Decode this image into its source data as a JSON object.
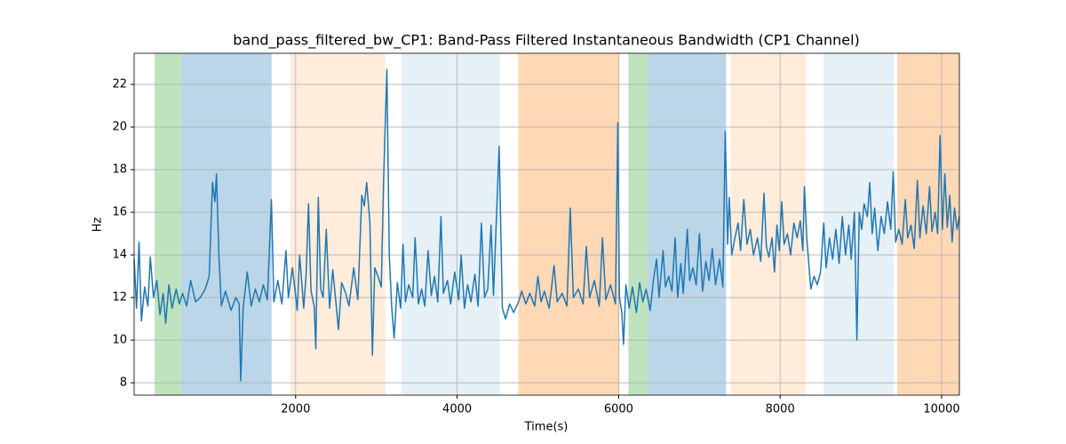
{
  "chart_data": {
    "type": "line",
    "title": "band_pass_filtered_bw_CP1: Band-Pass Filtered Instantaneous Bandwidth (CP1 Channel)",
    "xlabel": "Time(s)",
    "ylabel": "Hz",
    "xlim": [
      0,
      10220
    ],
    "ylim": [
      7.42,
      23.46
    ],
    "xticks": [
      2000,
      4000,
      6000,
      8000,
      10000
    ],
    "yticks": [
      8,
      10,
      12,
      14,
      16,
      18,
      20,
      22
    ],
    "grid": true,
    "spans": [
      {
        "x0": 253,
        "x1": 582,
        "color": "#2ca02c",
        "alpha": 0.3
      },
      {
        "x0": 582,
        "x1": 1703,
        "color": "#1f77b4",
        "alpha": 0.3
      },
      {
        "x0": 1934,
        "x1": 3110,
        "color": "#ff7f0e",
        "alpha": 0.15
      },
      {
        "x0": 3308,
        "x1": 4527,
        "color": "#1f77b4",
        "alpha": 0.11
      },
      {
        "x0": 4758,
        "x1": 6011,
        "color": "#ff7f0e",
        "alpha": 0.3
      },
      {
        "x0": 6121,
        "x1": 6363,
        "color": "#2ca02c",
        "alpha": 0.3
      },
      {
        "x0": 6363,
        "x1": 7330,
        "color": "#1f77b4",
        "alpha": 0.3
      },
      {
        "x0": 7385,
        "x1": 8319,
        "color": "#ff7f0e",
        "alpha": 0.15
      },
      {
        "x0": 8538,
        "x1": 9407,
        "color": "#1f77b4",
        "alpha": 0.11
      },
      {
        "x0": 9451,
        "x1": 10220,
        "color": "#ff7f0e",
        "alpha": 0.3
      }
    ],
    "x": [
      0,
      30,
      60,
      90,
      130,
      170,
      200,
      240,
      280,
      320,
      360,
      390,
      430,
      470,
      520,
      560,
      600,
      650,
      700,
      760,
      820,
      880,
      930,
      970,
      1000,
      1020,
      1050,
      1080,
      1130,
      1200,
      1260,
      1300,
      1320,
      1350,
      1400,
      1450,
      1500,
      1550,
      1600,
      1650,
      1700,
      1730,
      1780,
      1830,
      1880,
      1910,
      1960,
      2020,
      2050,
      2100,
      2130,
      2160,
      2190,
      2230,
      2250,
      2280,
      2310,
      2340,
      2380,
      2420,
      2460,
      2500,
      2530,
      2570,
      2620,
      2660,
      2720,
      2770,
      2820,
      2850,
      2880,
      2920,
      2950,
      2980,
      3020,
      3060,
      3090,
      3130,
      3160,
      3190,
      3220,
      3260,
      3300,
      3330,
      3360,
      3400,
      3450,
      3480,
      3520,
      3560,
      3600,
      3640,
      3680,
      3720,
      3760,
      3800,
      3830,
      3880,
      3920,
      3970,
      4020,
      4050,
      4090,
      4130,
      4170,
      4220,
      4260,
      4300,
      4340,
      4380,
      4420,
      4450,
      4520,
      4560,
      4600,
      4650,
      4700,
      4760,
      4800,
      4850,
      4900,
      4960,
      5000,
      5040,
      5080,
      5140,
      5200,
      5240,
      5300,
      5360,
      5400,
      5440,
      5500,
      5560,
      5600,
      5640,
      5700,
      5760,
      5800,
      5840,
      5900,
      5960,
      5990,
      6010,
      6040,
      6060,
      6090,
      6130,
      6170,
      6220,
      6260,
      6300,
      6340,
      6390,
      6430,
      6470,
      6500,
      6550,
      6580,
      6620,
      6660,
      6700,
      6730,
      6770,
      6800,
      6850,
      6880,
      6920,
      6960,
      7000,
      7040,
      7080,
      7120,
      7160,
      7200,
      7250,
      7290,
      7320,
      7350,
      7370,
      7400,
      7440,
      7480,
      7510,
      7550,
      7590,
      7630,
      7670,
      7720,
      7760,
      7800,
      7830,
      7860,
      7900,
      7930,
      7960,
      7990,
      8020,
      8050,
      8090,
      8130,
      8170,
      8210,
      8250,
      8280,
      8300,
      8330,
      8380,
      8420,
      8460,
      8500,
      8540,
      8570,
      8610,
      8650,
      8690,
      8730,
      8770,
      8810,
      8850,
      8880,
      8920,
      8950,
      8980,
      9010,
      9040,
      9080,
      9110,
      9140,
      9170,
      9210,
      9250,
      9290,
      9330,
      9370,
      9400,
      9430,
      9470,
      9510,
      9550,
      9580,
      9620,
      9660,
      9700,
      9730,
      9770,
      9810,
      9850,
      9880,
      9920,
      9950,
      9980,
      10010,
      10040,
      10070,
      10100,
      10130,
      10160,
      10190,
      10220
    ],
    "series": [
      {
        "color": "#1f77b4",
        "values": [
          13.8,
          11.5,
          14.6,
          10.9,
          12.5,
          11.6,
          13.9,
          12.0,
          12.8,
          11.2,
          12.2,
          10.8,
          12.6,
          11.5,
          12.4,
          11.7,
          12.2,
          11.6,
          12.8,
          11.8,
          12.0,
          12.4,
          13.0,
          17.4,
          16.5,
          17.8,
          14.0,
          11.6,
          12.3,
          11.4,
          12.0,
          11.7,
          8.1,
          11.5,
          13.2,
          11.6,
          12.4,
          11.8,
          12.6,
          11.9,
          16.6,
          11.8,
          12.8,
          11.7,
          14.2,
          12.0,
          13.4,
          11.4,
          14.0,
          11.5,
          13.1,
          16.4,
          12.3,
          11.6,
          9.6,
          16.7,
          12.4,
          12.0,
          15.2,
          11.5,
          13.3,
          11.7,
          10.5,
          12.7,
          12.2,
          11.6,
          13.4,
          11.9,
          16.8,
          16.3,
          17.4,
          15.5,
          9.3,
          13.4,
          13.0,
          12.5,
          17.6,
          22.7,
          14.0,
          11.5,
          10.1,
          12.7,
          11.5,
          14.5,
          11.8,
          12.6,
          12.0,
          14.8,
          11.7,
          12.4,
          11.6,
          14.2,
          12.1,
          13.0,
          11.8,
          15.8,
          12.2,
          12.8,
          11.7,
          13.2,
          11.9,
          14.0,
          11.5,
          12.6,
          11.8,
          13.1,
          11.6,
          15.5,
          12.0,
          12.4,
          15.4,
          12.1,
          19.1,
          11.5,
          11.0,
          11.7,
          11.3,
          11.8,
          12.3,
          11.7,
          12.2,
          11.6,
          13.0,
          11.8,
          12.3,
          11.5,
          13.5,
          11.8,
          12.2,
          11.6,
          16.2,
          12.0,
          12.4,
          11.7,
          14.4,
          12.0,
          12.8,
          11.6,
          14.8,
          11.9,
          12.6,
          11.7,
          20.2,
          12.0,
          11.3,
          9.8,
          12.6,
          11.5,
          12.5,
          11.3,
          12.7,
          11.8,
          12.4,
          11.4,
          12.8,
          13.8,
          12.0,
          14.2,
          12.5,
          13.0,
          12.3,
          14.8,
          12.0,
          13.6,
          12.2,
          15.2,
          12.8,
          13.4,
          12.6,
          15.0,
          12.3,
          13.7,
          12.8,
          14.3,
          12.6,
          13.8,
          12.5,
          19.8,
          14.5,
          16.7,
          14.0,
          14.8,
          15.5,
          14.2,
          16.6,
          14.5,
          15.2,
          14.0,
          14.8,
          13.7,
          16.9,
          14.4,
          13.9,
          14.8,
          13.2,
          15.4,
          14.2,
          16.5,
          14.5,
          15.0,
          14.0,
          15.5,
          14.8,
          15.6,
          14.2,
          17.2,
          14.8,
          12.4,
          13.0,
          12.6,
          13.2,
          15.5,
          13.4,
          14.8,
          13.8,
          15.2,
          13.6,
          15.8,
          14.0,
          15.4,
          13.8,
          16.0,
          10.0,
          16.0,
          15.2,
          16.4,
          15.8,
          17.4,
          15.0,
          16.2,
          14.2,
          15.8,
          15.0,
          16.5,
          15.2,
          17.9,
          14.6,
          15.2,
          14.5,
          16.6,
          14.8,
          15.4,
          14.3,
          17.5,
          14.8,
          16.3,
          15.0,
          17.2,
          15.1,
          16.0,
          15.0,
          19.6,
          15.2,
          17.8,
          15.3,
          16.8,
          14.6,
          16.2,
          15.2,
          15.8
        ]
      }
    ]
  }
}
